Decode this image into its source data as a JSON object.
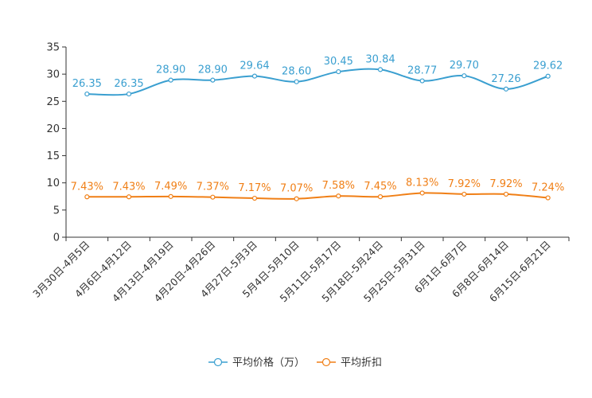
{
  "chart_data": {
    "type": "line",
    "title": "",
    "xlabel": "",
    "ylabel": "",
    "ylim": [
      0,
      35
    ],
    "yticks": [
      0,
      5,
      10,
      15,
      20,
      25,
      30,
      35
    ],
    "grid": false,
    "legend_position": "bottom-center",
    "categories": [
      "3月30日-4月5日",
      "4月6日-4月12日",
      "4月13日-4月19日",
      "4月20日-4月26日",
      "4月27日-5月3日",
      "5月4日-5月10日",
      "5月11日-5月17日",
      "5月18日-5月24日",
      "5月25日-5月31日",
      "6月1日-6月7日",
      "6月8日-6月14日",
      "6月15日-6月21日"
    ],
    "series": [
      {
        "name": "平均价格（万）",
        "color": "#3a9fd0",
        "values": [
          26.35,
          26.35,
          28.9,
          28.9,
          29.64,
          28.6,
          30.45,
          30.84,
          28.77,
          29.7,
          27.26,
          29.62
        ],
        "labels": [
          "26.35",
          "26.35",
          "28.90",
          "28.90",
          "29.64",
          "28.60",
          "30.45",
          "30.84",
          "28.77",
          "29.70",
          "27.26",
          "29.62"
        ]
      },
      {
        "name": "平均折扣",
        "color": "#f07f16",
        "values": [
          7.43,
          7.43,
          7.49,
          7.37,
          7.17,
          7.07,
          7.58,
          7.45,
          8.13,
          7.92,
          7.92,
          7.24
        ],
        "labels": [
          "7.43%",
          "7.43%",
          "7.49%",
          "7.37%",
          "7.17%",
          "7.07%",
          "7.58%",
          "7.45%",
          "8.13%",
          "7.92%",
          "7.92%",
          "7.24%"
        ]
      }
    ]
  }
}
